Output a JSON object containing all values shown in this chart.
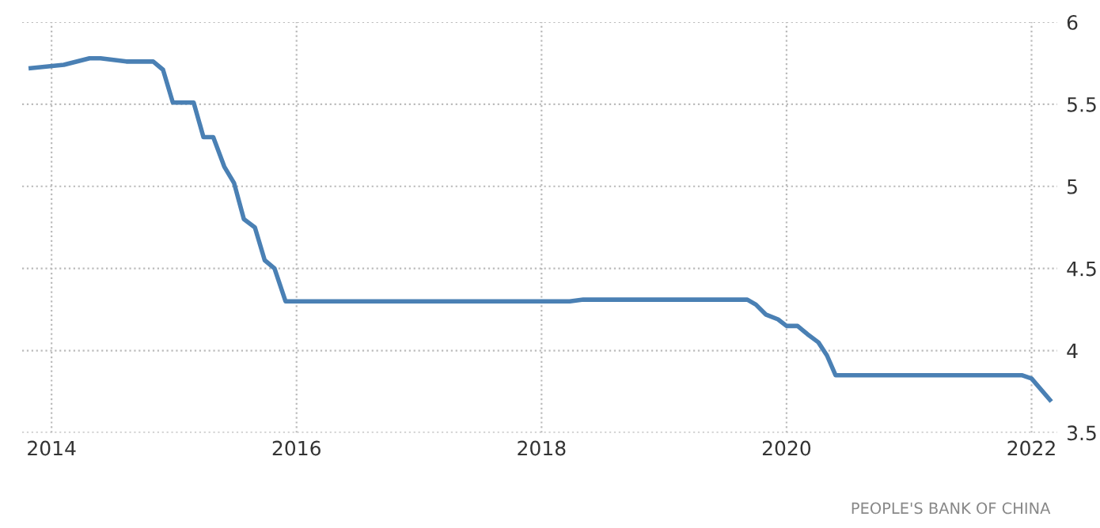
{
  "chart_data": {
    "type": "line",
    "annotations": [
      "PEOPLE'S BANK OF CHINA"
    ],
    "x": [
      2013.83,
      2014.1,
      2014.31,
      2014.4,
      2014.61,
      2014.83,
      2014.91,
      2014.99,
      2015.16,
      2015.24,
      2015.32,
      2015.41,
      2015.49,
      2015.57,
      2015.66,
      2015.74,
      2015.82,
      2015.91,
      2018.23,
      2018.34,
      2019.68,
      2019.75,
      2019.83,
      2019.93,
      2020.0,
      2020.09,
      2020.17,
      2020.26,
      2020.33,
      2020.4,
      2021.92,
      2022.0,
      2022.15
    ],
    "series": [
      {
        "color": "#4a80b4",
        "values": [
          5.72,
          5.74,
          5.78,
          5.78,
          5.76,
          5.76,
          5.71,
          5.51,
          5.51,
          5.3,
          5.3,
          5.12,
          5.02,
          4.8,
          4.75,
          4.55,
          4.5,
          4.3,
          4.3,
          4.31,
          4.31,
          4.28,
          4.22,
          4.19,
          4.15,
          4.15,
          4.1,
          4.05,
          3.97,
          3.85,
          3.85,
          3.83,
          3.7
        ]
      }
    ],
    "xlim": [
      2013.76,
      2022.21
    ],
    "ylim": [
      3.5,
      6
    ],
    "xticks": [
      2014,
      2016,
      2018,
      2020,
      2022
    ],
    "yticks": [
      3.5,
      4,
      4.5,
      5,
      5.5,
      6
    ],
    "grid": true,
    "marker": "none",
    "line_style": "solid"
  }
}
